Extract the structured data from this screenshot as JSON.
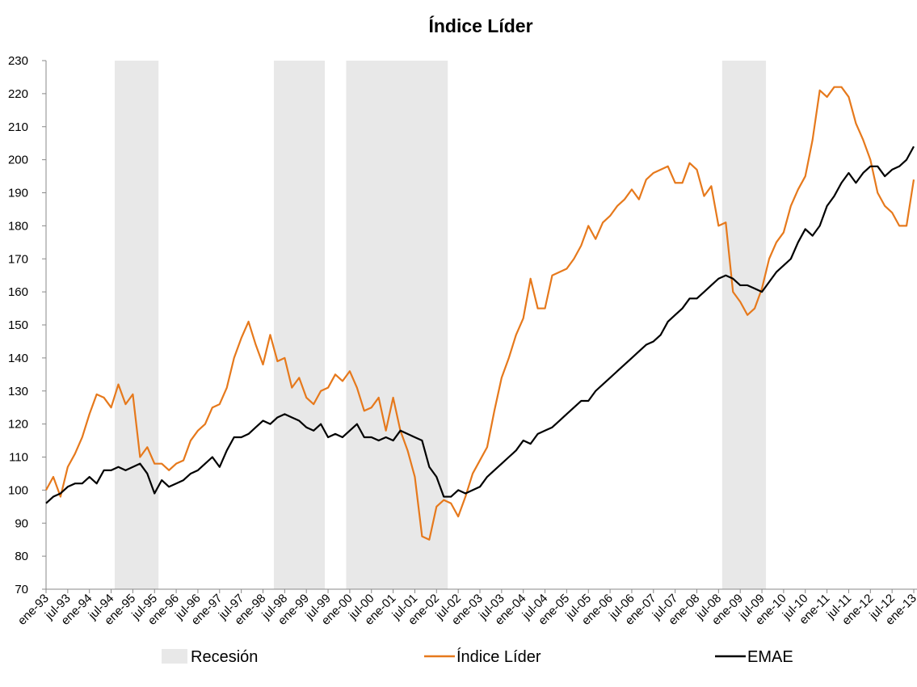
{
  "chart_data": {
    "type": "line",
    "title": "Índice Líder",
    "categories": [
      "ene-93",
      null,
      null,
      "jul-93",
      null,
      null,
      "ene-94",
      null,
      null,
      "jul-94",
      null,
      null,
      "ene-95",
      null,
      null,
      "jul-95",
      null,
      null,
      "ene-96",
      null,
      null,
      "jul-96",
      null,
      null,
      "ene-97",
      null,
      null,
      "jul-97",
      null,
      null,
      "ene-98",
      null,
      null,
      "jul-98",
      null,
      null,
      "ene-99",
      null,
      null,
      "jul-99",
      null,
      null,
      "ene-00",
      null,
      null,
      "jul-00",
      null,
      null,
      "ene-01",
      null,
      null,
      "jul-01",
      null,
      null,
      "ene-02",
      null,
      null,
      "jul-02",
      null,
      null,
      "ene-03",
      null,
      null,
      "jul-03",
      null,
      null,
      "ene-04",
      null,
      null,
      "jul-04",
      null,
      null,
      "ene-05",
      null,
      null,
      "jul-05",
      null,
      null,
      "ene-06",
      null,
      null,
      "jul-06",
      null,
      null,
      "ene-07",
      null,
      null,
      "jul-07",
      null,
      null,
      "ene-08",
      null,
      null,
      "jul-08",
      null,
      null,
      "ene-09",
      null,
      null,
      "jul-09",
      null,
      null,
      "ene-10",
      null,
      null,
      "jul-10",
      null,
      null,
      "ene-11",
      null,
      null,
      "jul-11",
      null,
      null,
      "ene-12",
      null,
      null,
      "jul-12",
      null,
      null,
      "ene-13"
    ],
    "series": [
      {
        "name": "Recesión",
        "type": "bar",
        "color": "#e8e8e8",
        "values": [
          null,
          null,
          null,
          null,
          null,
          null,
          null,
          null,
          null,
          null,
          230,
          230,
          230,
          230,
          230,
          230,
          null,
          null,
          null,
          null,
          null,
          null,
          null,
          null,
          null,
          null,
          null,
          null,
          null,
          null,
          null,
          null,
          230,
          230,
          230,
          230,
          230,
          230,
          230,
          null,
          null,
          null,
          230,
          230,
          230,
          230,
          230,
          230,
          230,
          230,
          230,
          230,
          230,
          230,
          230,
          230,
          null,
          null,
          null,
          null,
          null,
          null,
          null,
          null,
          null,
          null,
          null,
          null,
          null,
          null,
          null,
          null,
          null,
          null,
          null,
          null,
          null,
          null,
          null,
          null,
          null,
          null,
          null,
          null,
          null,
          null,
          null,
          null,
          null,
          null,
          null,
          null,
          null,
          null,
          230,
          230,
          230,
          230,
          230,
          230,
          null,
          null,
          null,
          null,
          null,
          null,
          null,
          null,
          null,
          null,
          null,
          null,
          null,
          null,
          null,
          null,
          null,
          null,
          null,
          null,
          null
        ]
      },
      {
        "name": "Índice Líder",
        "type": "line",
        "color": "#e6791c",
        "values": [
          100,
          104,
          98,
          107,
          111,
          116,
          123,
          129,
          128,
          125,
          132,
          126,
          129,
          110,
          113,
          108,
          108,
          106,
          108,
          109,
          115,
          118,
          120,
          125,
          126,
          131,
          140,
          146,
          151,
          144,
          138,
          147,
          139,
          140,
          131,
          134,
          128,
          126,
          130,
          131,
          135,
          133,
          136,
          131,
          124,
          125,
          128,
          118,
          128,
          118,
          112,
          104,
          86,
          85,
          95,
          97,
          96,
          92,
          98,
          105,
          109,
          113,
          124,
          134,
          140,
          147,
          152,
          164,
          155,
          155,
          165,
          166,
          167,
          170,
          174,
          180,
          176,
          181,
          183,
          186,
          188,
          191,
          188,
          194,
          196,
          197,
          198,
          193,
          193,
          199,
          197,
          189,
          192,
          180,
          181,
          160,
          157,
          153,
          155,
          161,
          170,
          175,
          178,
          186,
          191,
          195,
          206,
          221,
          219,
          222,
          222,
          219,
          211,
          206,
          200,
          190,
          186,
          184,
          180,
          180,
          194
        ]
      },
      {
        "name": "EMAE",
        "type": "line",
        "color": "#000000",
        "values": [
          96,
          98,
          99,
          101,
          102,
          102,
          104,
          102,
          106,
          106,
          107,
          106,
          107,
          108,
          105,
          99,
          103,
          101,
          102,
          103,
          105,
          106,
          108,
          110,
          107,
          112,
          116,
          116,
          117,
          119,
          121,
          120,
          122,
          123,
          122,
          121,
          119,
          118,
          120,
          116,
          117,
          116,
          118,
          120,
          116,
          116,
          115,
          116,
          115,
          118,
          117,
          116,
          115,
          107,
          104,
          98,
          98,
          100,
          99,
          100,
          101,
          104,
          106,
          108,
          110,
          112,
          115,
          114,
          117,
          118,
          119,
          121,
          123,
          125,
          127,
          127,
          130,
          132,
          134,
          136,
          138,
          140,
          142,
          144,
          145,
          147,
          151,
          153,
          155,
          158,
          158,
          160,
          162,
          164,
          165,
          164,
          162,
          162,
          161,
          160,
          163,
          166,
          168,
          170,
          175,
          179,
          177,
          180,
          186,
          189,
          193,
          196,
          193,
          196,
          198,
          198,
          195,
          197,
          198,
          200,
          204
        ]
      }
    ],
    "ylim": [
      70,
      230
    ],
    "yticks": [
      70,
      80,
      90,
      100,
      110,
      120,
      130,
      140,
      150,
      160,
      170,
      180,
      190,
      200,
      210,
      220,
      230
    ]
  }
}
